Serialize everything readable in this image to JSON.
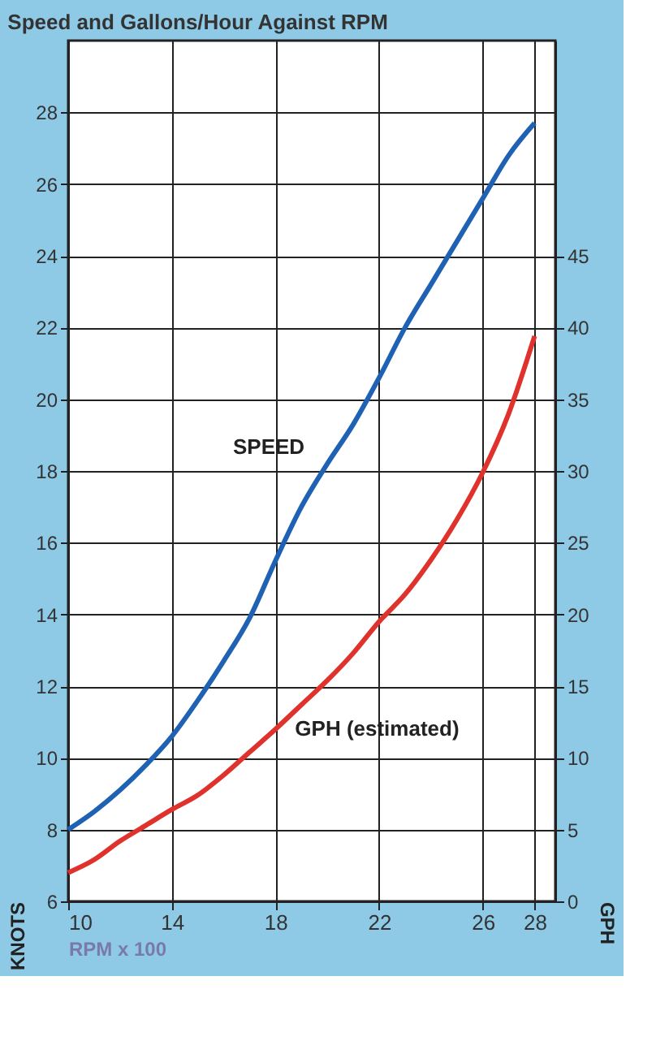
{
  "chart_data": {
    "type": "line",
    "title": "Speed and Gallons/Hour Against RPM",
    "xlabel": "RPM x 100",
    "ylabel": "KNOTS",
    "y2label": "GPH",
    "x": [
      10,
      11,
      12,
      13,
      14,
      15,
      16,
      17,
      18,
      19,
      20,
      21,
      22,
      23,
      24,
      25,
      26,
      27,
      28
    ],
    "series": [
      {
        "name": "SPEED",
        "color": "#1f62b4",
        "values": [
          8.0,
          8.5,
          9.1,
          9.8,
          10.6,
          11.6,
          12.7,
          13.9,
          15.5,
          17.0,
          18.2,
          19.3,
          20.6,
          22.0,
          23.2,
          24.4,
          25.6,
          26.8,
          27.7
        ]
      },
      {
        "name": "GPH (estimated)",
        "color": "#e0322c",
        "axis": "y2",
        "values": [
          2.0,
          2.9,
          4.2,
          5.3,
          6.4,
          7.4,
          8.8,
          10.4,
          12.0,
          13.7,
          15.4,
          17.3,
          19.5,
          21.4,
          23.8,
          26.6,
          29.9,
          34.0,
          39.4
        ]
      }
    ],
    "xlim": [
      10,
      28.8
    ],
    "xticks": [
      10,
      14,
      18,
      22,
      26,
      28
    ],
    "ylim": [
      6,
      30
    ],
    "yticks": [
      6,
      8,
      10,
      12,
      14,
      16,
      18,
      20,
      22,
      24,
      26,
      28
    ],
    "y2lim": [
      0,
      60
    ],
    "y2ticks": [
      0,
      5,
      10,
      15,
      20,
      25,
      30,
      35,
      40,
      45
    ],
    "grid": true,
    "legend": false,
    "marker": "none",
    "line_style": "solid"
  }
}
